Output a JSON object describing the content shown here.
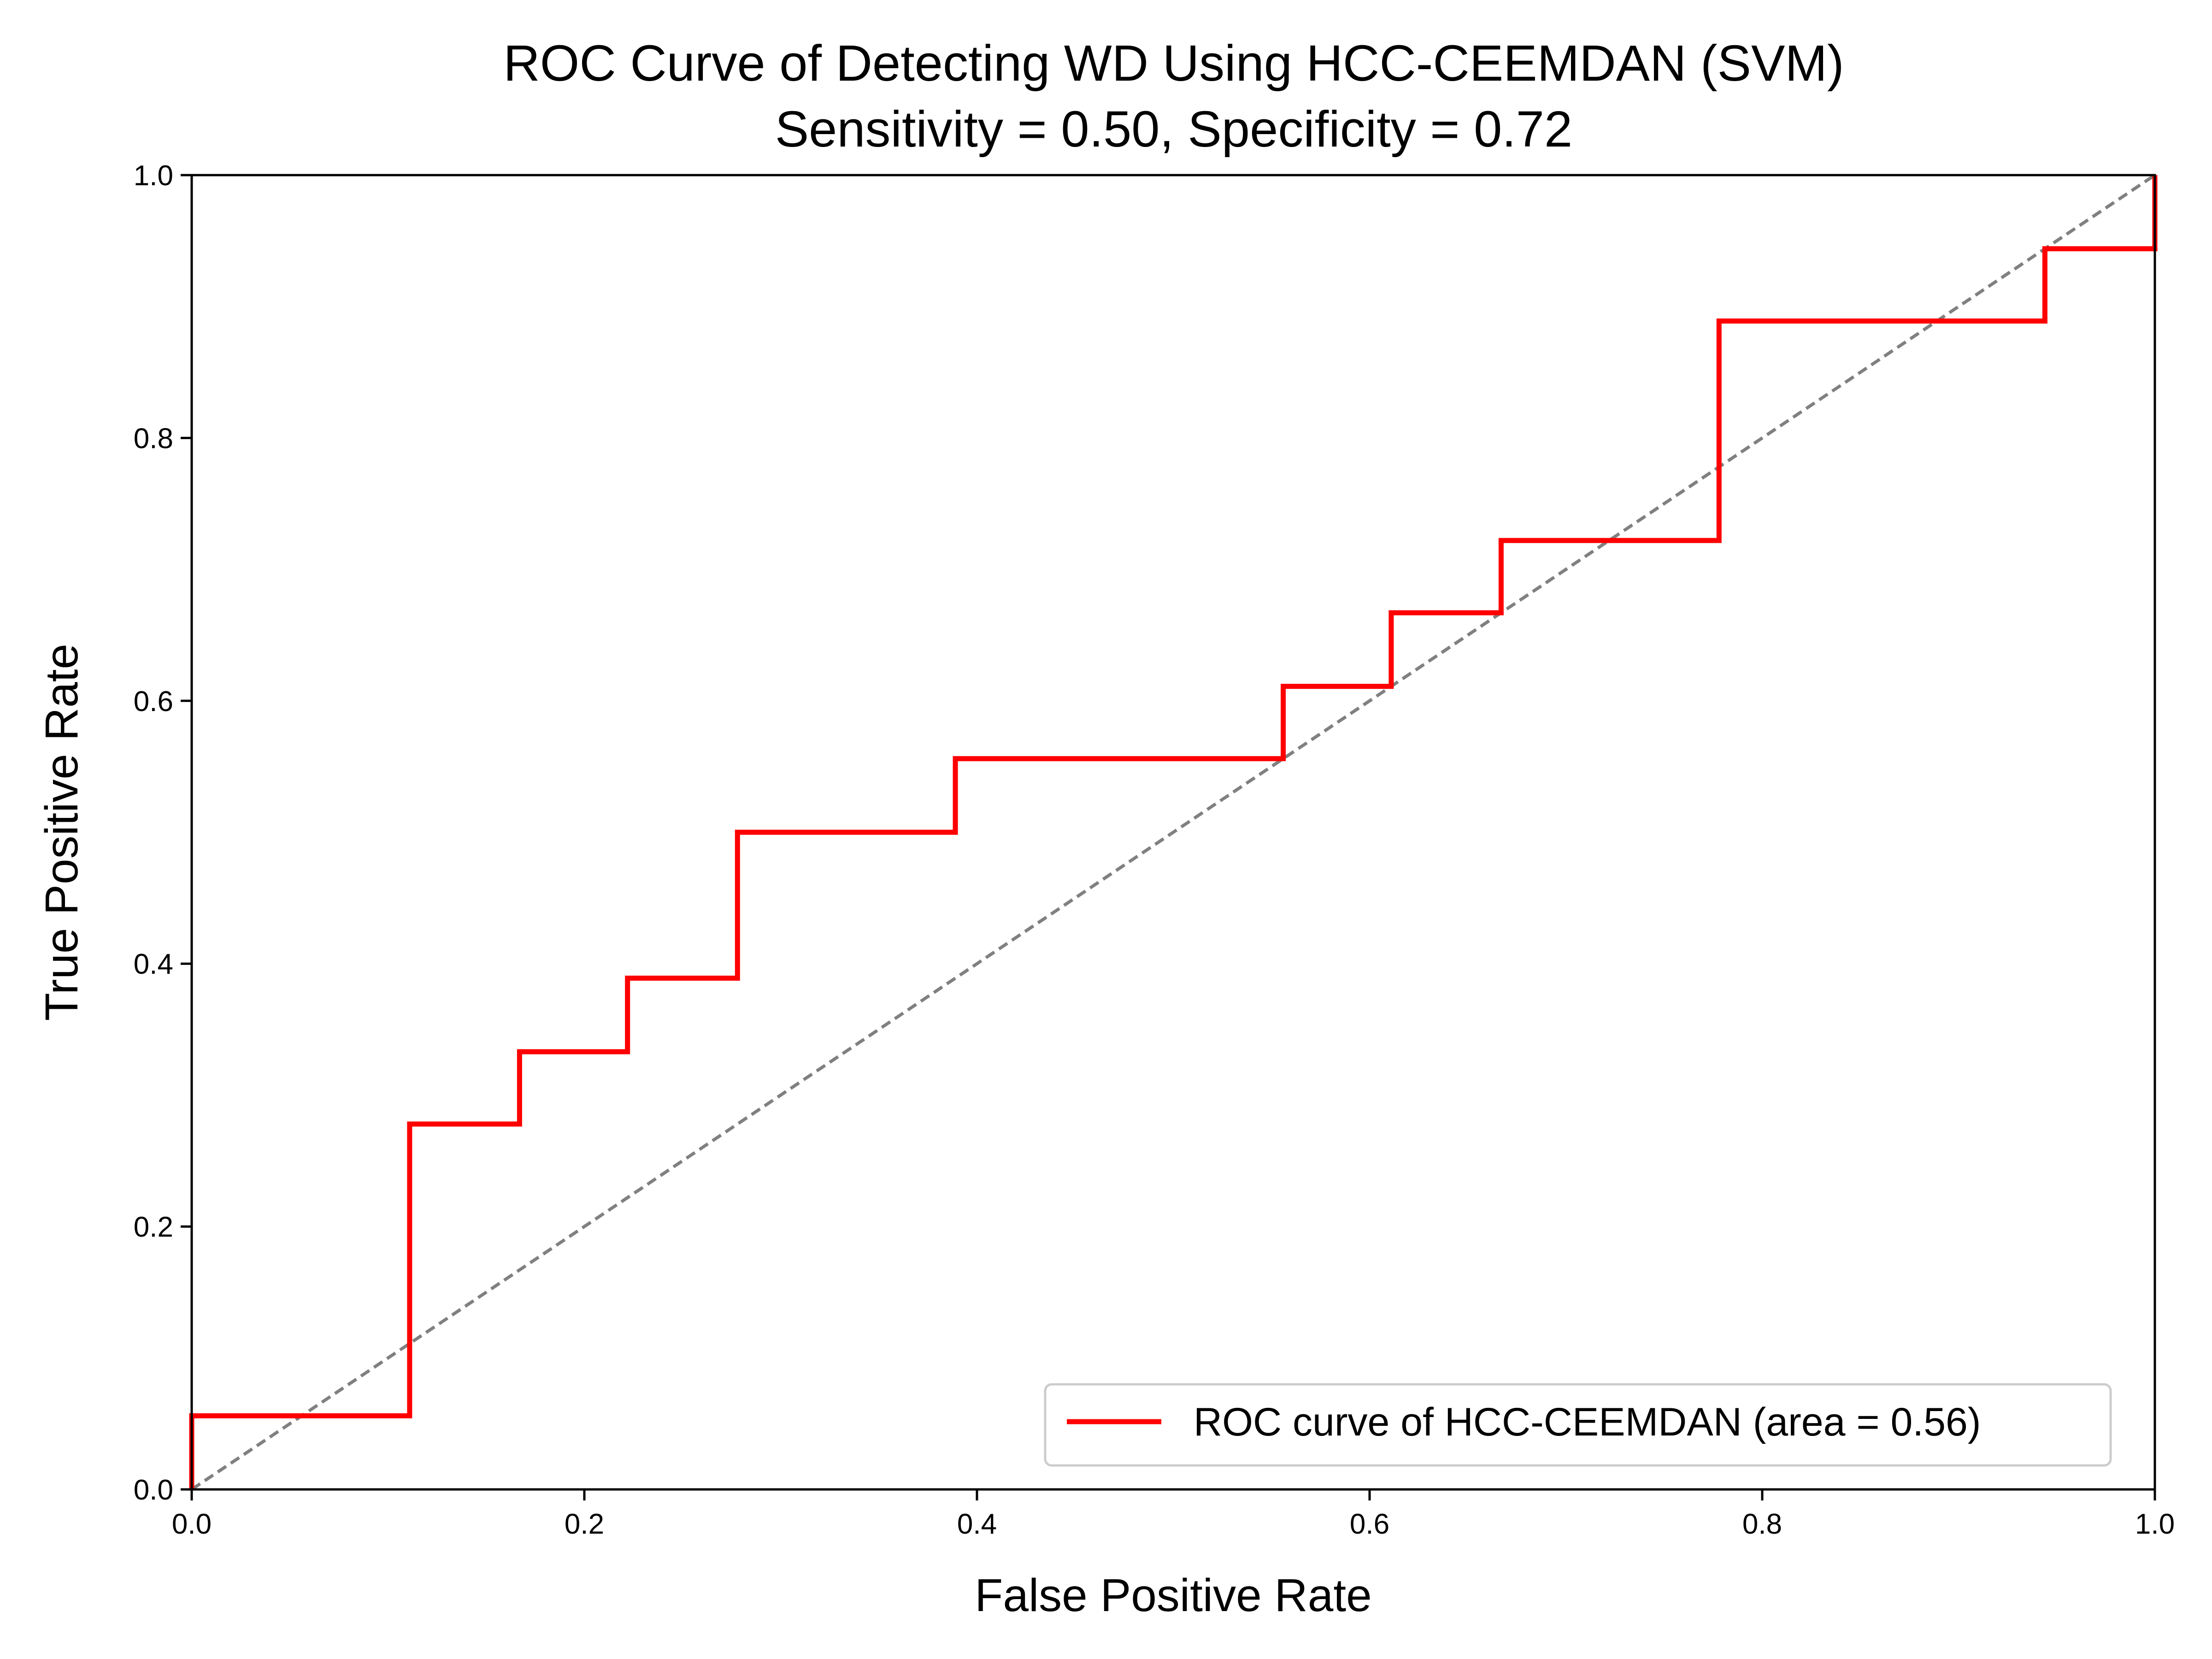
{
  "chart_data": {
    "type": "line",
    "title": "ROC Curve of Detecting WD Using HCC-CEEMDAN (SVM)",
    "subtitle": "Sensitivity = 0.50, Specificity = 0.72",
    "xlabel": "False Positive Rate",
    "ylabel": "True Positive Rate",
    "xlim": [
      0.0,
      1.0
    ],
    "ylim": [
      0.0,
      1.0
    ],
    "xticks": [
      "0.0",
      "0.2",
      "0.4",
      "0.6",
      "0.8",
      "1.0"
    ],
    "yticks": [
      "0.0",
      "0.2",
      "0.4",
      "0.6",
      "0.8",
      "1.0"
    ],
    "grid": false,
    "legend_position": "bottom-right",
    "series": [
      {
        "name": "ROC curve of HCC-CEEMDAN (area = 0.56)",
        "color": "#ff0000",
        "x": [
          0.0,
          0.0,
          0.111,
          0.111,
          0.167,
          0.167,
          0.222,
          0.222,
          0.278,
          0.278,
          0.389,
          0.389,
          0.556,
          0.556,
          0.611,
          0.611,
          0.667,
          0.667,
          0.778,
          0.778,
          0.944,
          0.944,
          1.0,
          1.0
        ],
        "y": [
          0.0,
          0.056,
          0.056,
          0.278,
          0.278,
          0.333,
          0.333,
          0.389,
          0.389,
          0.5,
          0.5,
          0.556,
          0.556,
          0.611,
          0.611,
          0.667,
          0.667,
          0.722,
          0.722,
          0.889,
          0.889,
          0.944,
          0.944,
          1.0
        ]
      }
    ],
    "reference_line": {
      "color": "#808080",
      "style": "dashed",
      "x": [
        0.0,
        1.0
      ],
      "y": [
        0.0,
        1.0
      ]
    }
  }
}
